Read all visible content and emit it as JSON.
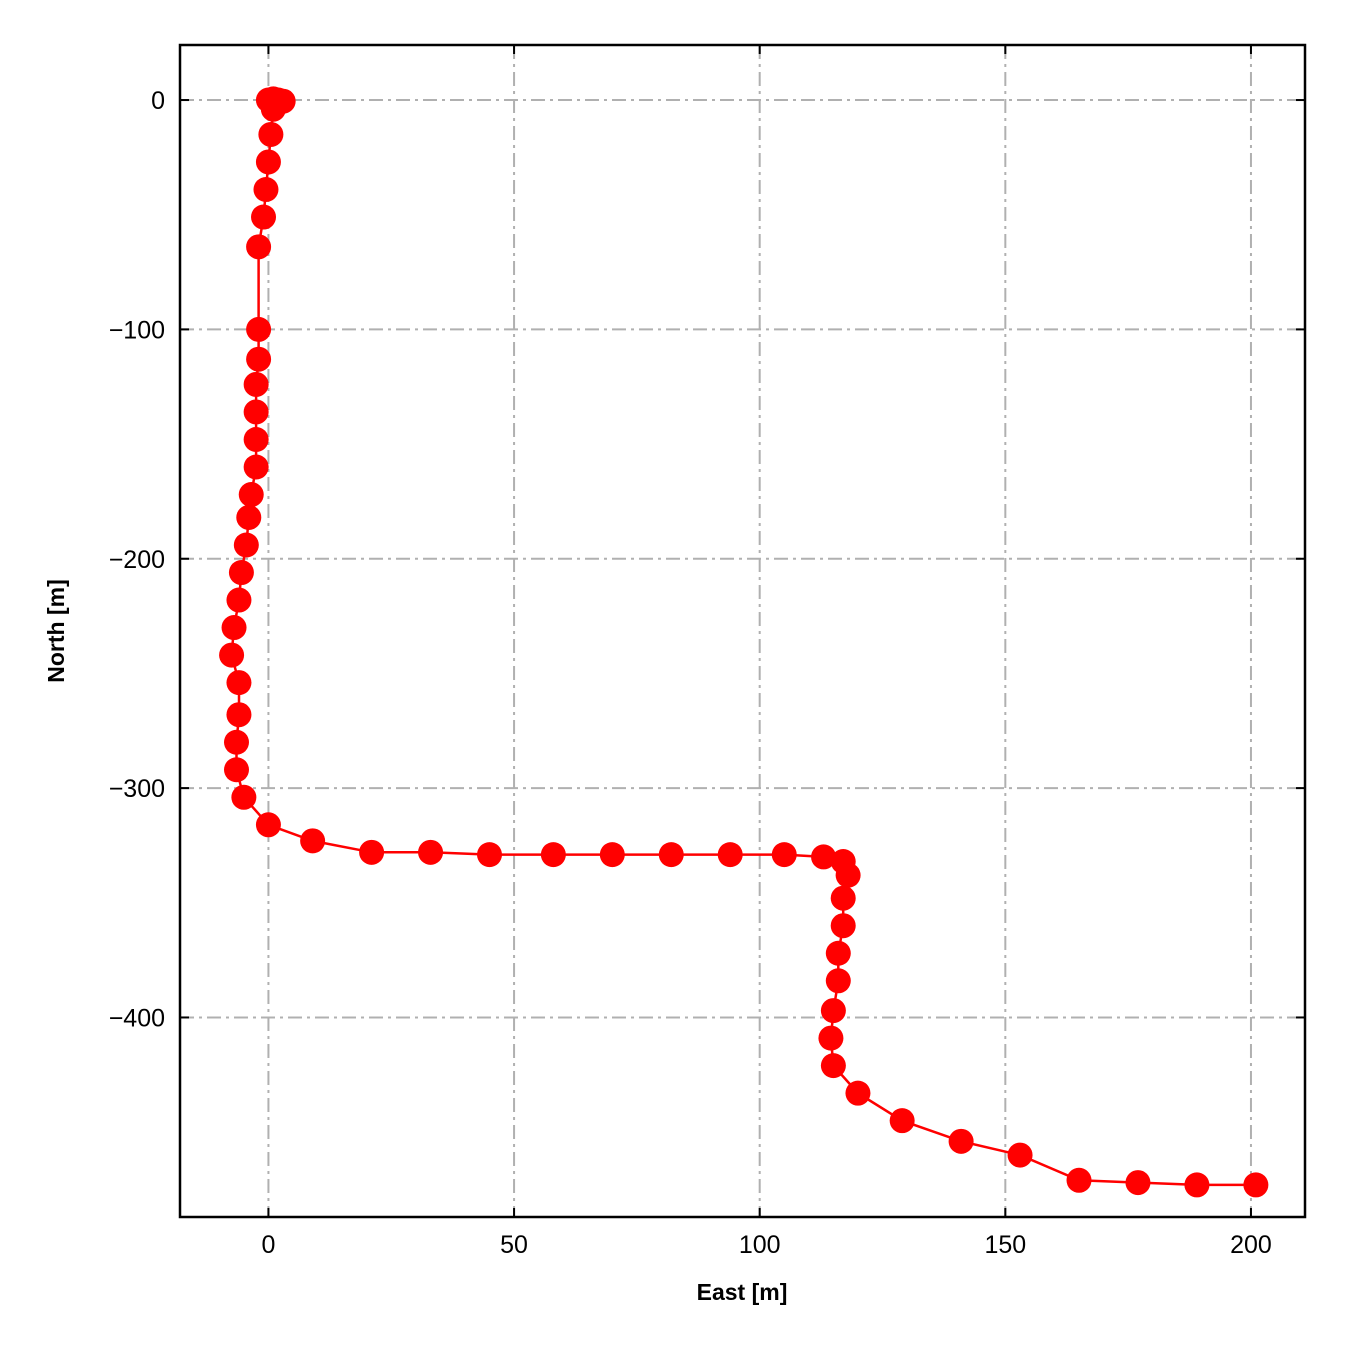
{
  "chart_data": {
    "type": "line",
    "xlabel": "East [m]",
    "ylabel": "North [m]",
    "xlim": [
      -18,
      211
    ],
    "ylim": [
      -487,
      24
    ],
    "xticks": [
      0,
      50,
      100,
      150,
      200
    ],
    "xtick_labels": [
      "0",
      "50",
      "100",
      "150",
      "200"
    ],
    "yticks": [
      0,
      -100,
      -200,
      -300,
      -400
    ],
    "ytick_labels": [
      "0",
      "−100",
      "−200",
      "−300",
      "−400"
    ],
    "grid": true,
    "legend": "none",
    "series": [
      {
        "color": "#ff0000",
        "marker": "circle",
        "x": [
          0,
          1,
          2,
          3,
          1,
          0.5,
          0,
          -0.5,
          -1,
          -2,
          -2,
          -2,
          -2.5,
          -2.5,
          -2.5,
          -2.5,
          -3.5,
          -4,
          -4.5,
          -5.5,
          -6,
          -7,
          -7.5,
          -6,
          -6,
          -6.5,
          -6.5,
          -5,
          0,
          9,
          21,
          33,
          45,
          58,
          70,
          82,
          94,
          105,
          113,
          117,
          118,
          117,
          117,
          116,
          116,
          115,
          114.5,
          115,
          120,
          129,
          141,
          153,
          165,
          177,
          189,
          201
        ],
        "y": [
          0,
          0.5,
          0,
          -0.5,
          -4,
          -15,
          -27,
          -39,
          -51,
          -64,
          -100,
          -113,
          -124,
          -136,
          -148,
          -160,
          -172,
          -182,
          -194,
          -206,
          -218,
          -230,
          -242,
          -254,
          -268,
          -280,
          -292,
          -304,
          -316,
          -323,
          -328,
          -328,
          -329,
          -329,
          -329,
          -329,
          -329,
          -329,
          -330,
          -332,
          -338,
          -348,
          -360,
          -372,
          -384,
          -397,
          -409,
          -421,
          -433,
          -445,
          -454,
          -460,
          -471,
          -472,
          -473,
          -473
        ]
      }
    ]
  }
}
